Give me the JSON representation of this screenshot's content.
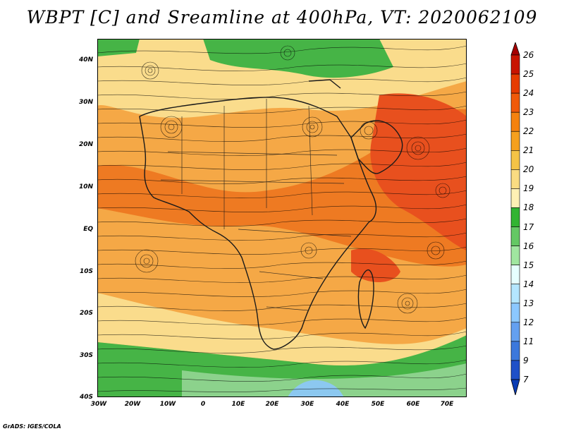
{
  "title": "WBPT [C] and Sreamline at 400hPa, VT: 2020062109",
  "credit": "GrADS: IGES/COLA",
  "latitude_labels": [
    "40N",
    "30N",
    "20N",
    "10N",
    "EQ",
    "10S",
    "20S",
    "30S",
    "40S"
  ],
  "longitude_labels": [
    "30W",
    "20W",
    "10W",
    "0",
    "10E",
    "20E",
    "30E",
    "40E",
    "50E",
    "60E",
    "70E"
  ],
  "colorbar": {
    "labels": [
      "26",
      "25",
      "24",
      "23",
      "22",
      "21",
      "20",
      "19",
      "18",
      "17",
      "16",
      "15",
      "14",
      "13",
      "12",
      "11",
      "9",
      "7"
    ],
    "colors": [
      "#a50000",
      "#c81400",
      "#e63c00",
      "#f05a0a",
      "#f5820f",
      "#f5a01e",
      "#f5c346",
      "#fadc82",
      "#fff0b4",
      "#32b432",
      "#64c864",
      "#a0e6a0",
      "#e6ffff",
      "#b4e6ff",
      "#8cc8ff",
      "#64a0f0",
      "#3c78dc",
      "#1e50c8",
      "#0a3cb4"
    ]
  },
  "field_colors": {
    "warm_high": "#e8501e",
    "warm_mid": "#f08c1e",
    "warm_low": "#f5b446",
    "cool_high": "#fadc8c",
    "green": "#46b446",
    "light_green": "#8cd28c",
    "blue": "#8cc8f0",
    "land_line": "#1a1a1a"
  }
}
